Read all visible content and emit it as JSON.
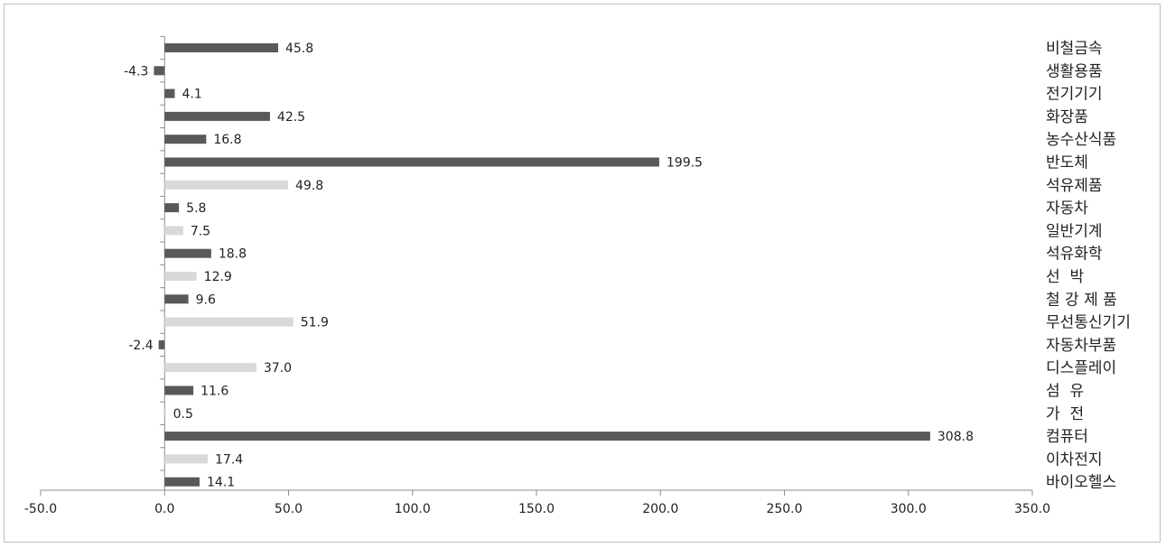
{
  "chart_data": {
    "type": "bar",
    "orientation": "horizontal",
    "title": "",
    "xlabel": "",
    "ylabel": "",
    "xlim": [
      -50,
      350
    ],
    "x_ticks": [
      -50,
      0,
      50,
      100,
      150,
      200,
      250,
      300,
      350
    ],
    "x_tick_labels": [
      "-50.0",
      "0.0",
      "50.0",
      "100.0",
      "150.0",
      "200.0",
      "250.0",
      "300.0",
      "350.0"
    ],
    "grid": false,
    "legend": "none",
    "colors": {
      "dark": "#595959",
      "light": "#d9d9d9"
    },
    "bars": [
      {
        "category": "비철금속",
        "value": 45.8,
        "label": "45.8",
        "shade": "dark"
      },
      {
        "category": "생활용품",
        "value": -4.3,
        "label": "-4.3",
        "shade": "dark"
      },
      {
        "category": "전기기기",
        "value": 4.1,
        "label": "4.1",
        "shade": "dark"
      },
      {
        "category": "화장품",
        "value": 42.5,
        "label": "42.5",
        "shade": "dark"
      },
      {
        "category": "농수산식품",
        "value": 16.8,
        "label": "16.8",
        "shade": "dark"
      },
      {
        "category": "반도체",
        "value": 199.5,
        "label": "199.5",
        "shade": "dark"
      },
      {
        "category": "석유제품",
        "value": 49.8,
        "label": "49.8",
        "shade": "light"
      },
      {
        "category": "자동차",
        "value": 5.8,
        "label": "5.8",
        "shade": "dark"
      },
      {
        "category": "일반기계",
        "value": 7.5,
        "label": "7.5",
        "shade": "light"
      },
      {
        "category": "석유화학",
        "value": 18.8,
        "label": "18.8",
        "shade": "dark"
      },
      {
        "category": "선  박",
        "value": 12.9,
        "label": "12.9",
        "shade": "light"
      },
      {
        "category": "철 강 제 품",
        "value": 9.6,
        "label": "9.6",
        "shade": "dark"
      },
      {
        "category": "무선통신기기",
        "value": 51.9,
        "label": "51.9",
        "shade": "light"
      },
      {
        "category": "자동차부품",
        "value": -2.4,
        "label": "-2.4",
        "shade": "dark"
      },
      {
        "category": "디스플레이",
        "value": 37.0,
        "label": "37.0",
        "shade": "light"
      },
      {
        "category": "섬  유",
        "value": 11.6,
        "label": "11.6",
        "shade": "dark"
      },
      {
        "category": "가  전",
        "value": 0.5,
        "label": "0.5",
        "shade": "light"
      },
      {
        "category": "컴퓨터",
        "value": 308.8,
        "label": "308.8",
        "shade": "dark"
      },
      {
        "category": "이차전지",
        "value": 17.4,
        "label": "17.4",
        "shade": "light"
      },
      {
        "category": "바이오헬스",
        "value": 14.1,
        "label": "14.1",
        "shade": "dark"
      }
    ]
  }
}
